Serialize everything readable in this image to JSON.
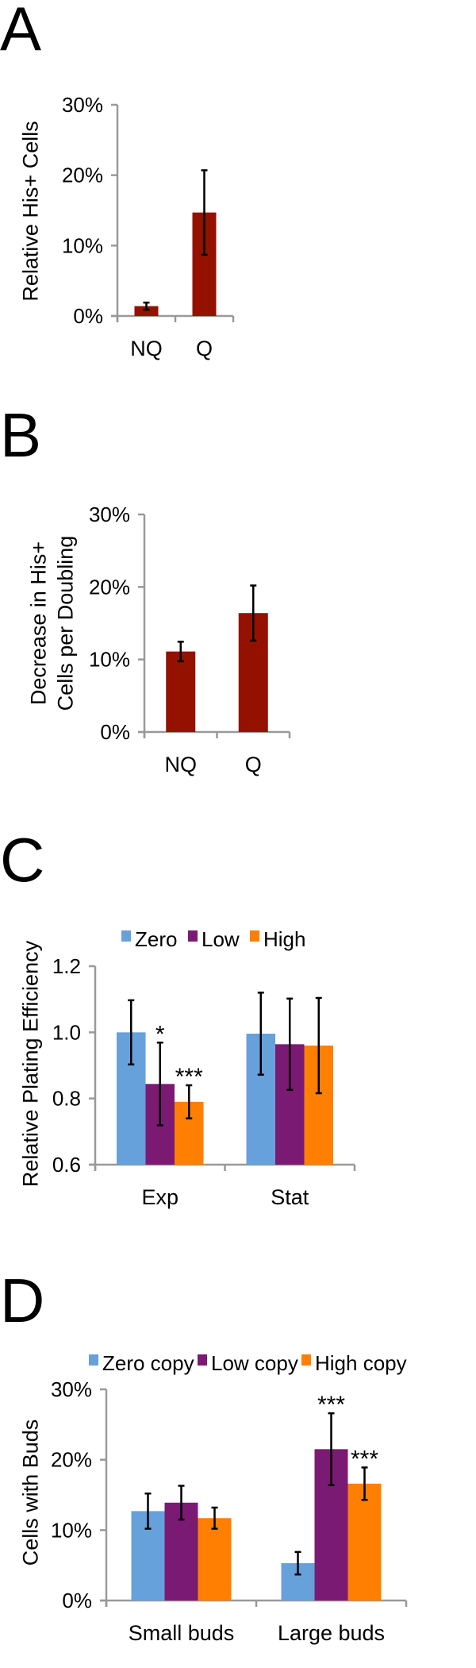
{
  "colors": {
    "dark_red": "#941100",
    "zero": "#66a1dc",
    "low": "#7b1a73",
    "high": "#fe7f01",
    "axis": "#999999"
  },
  "chart_data": [
    {
      "panel": "A",
      "type": "bar",
      "ylabel": "Relative His+ Cells",
      "categories": [
        "NQ",
        "Q"
      ],
      "yticks": [
        "0%",
        "10%",
        "20%",
        "30%"
      ],
      "ylim": [
        0,
        30
      ],
      "series": [
        {
          "values": [
            1.4,
            14.7
          ],
          "errors": [
            0.5,
            6.0
          ],
          "color": "#941100"
        }
      ],
      "annotations": []
    },
    {
      "panel": "B",
      "type": "bar",
      "ylabel": [
        "Decrease in His+",
        "Cells per Doubling"
      ],
      "categories": [
        "NQ",
        "Q"
      ],
      "yticks": [
        "0%",
        "10%",
        "20%",
        "30%"
      ],
      "ylim": [
        0,
        30
      ],
      "series": [
        {
          "values": [
            11.1,
            16.4
          ],
          "errors": [
            1.35,
            3.8
          ],
          "color": "#941100"
        }
      ],
      "annotations": []
    },
    {
      "panel": "C",
      "type": "bar",
      "ylabel": "Relative Plating Efficiency",
      "categories": [
        "Exp",
        "Stat"
      ],
      "yticks": [
        "0.6",
        "0.8",
        "1.0",
        "1.2"
      ],
      "ylim": [
        0.6,
        1.2
      ],
      "legend": "top",
      "series": [
        {
          "name": "Zero",
          "values": [
            1.0,
            0.996
          ],
          "errors": [
            0.097,
            0.124
          ],
          "color": "#66a1dc"
        },
        {
          "name": "Low",
          "values": [
            0.844,
            0.964
          ],
          "errors": [
            0.125,
            0.138
          ],
          "color": "#7b1a73"
        },
        {
          "name": "High",
          "values": [
            0.79,
            0.96
          ],
          "errors": [
            0.05,
            0.144
          ],
          "color": "#fe7f01"
        }
      ],
      "annotations": [
        {
          "text": "*",
          "category": 0,
          "series": 1
        },
        {
          "text": "***",
          "category": 0,
          "series": 2
        }
      ]
    },
    {
      "panel": "D",
      "type": "bar",
      "ylabel": "Cells with Buds",
      "categories": [
        "Small buds",
        "Large buds"
      ],
      "yticks": [
        "0%",
        "10%",
        "20%",
        "30%"
      ],
      "ylim": [
        0,
        30
      ],
      "legend": "top",
      "series": [
        {
          "name": "Zero copy",
          "values": [
            12.7,
            5.3
          ],
          "errors": [
            2.5,
            1.6
          ],
          "color": "#66a1dc"
        },
        {
          "name": "Low copy",
          "values": [
            13.9,
            21.5
          ],
          "errors": [
            2.4,
            5.1
          ],
          "color": "#7b1a73"
        },
        {
          "name": "High copy",
          "values": [
            11.7,
            16.6
          ],
          "errors": [
            1.5,
            2.3
          ],
          "color": "#fe7f01"
        }
      ],
      "annotations": [
        {
          "text": "***",
          "category": 1,
          "series": 1
        },
        {
          "text": "***",
          "category": 1,
          "series": 2
        }
      ]
    }
  ]
}
